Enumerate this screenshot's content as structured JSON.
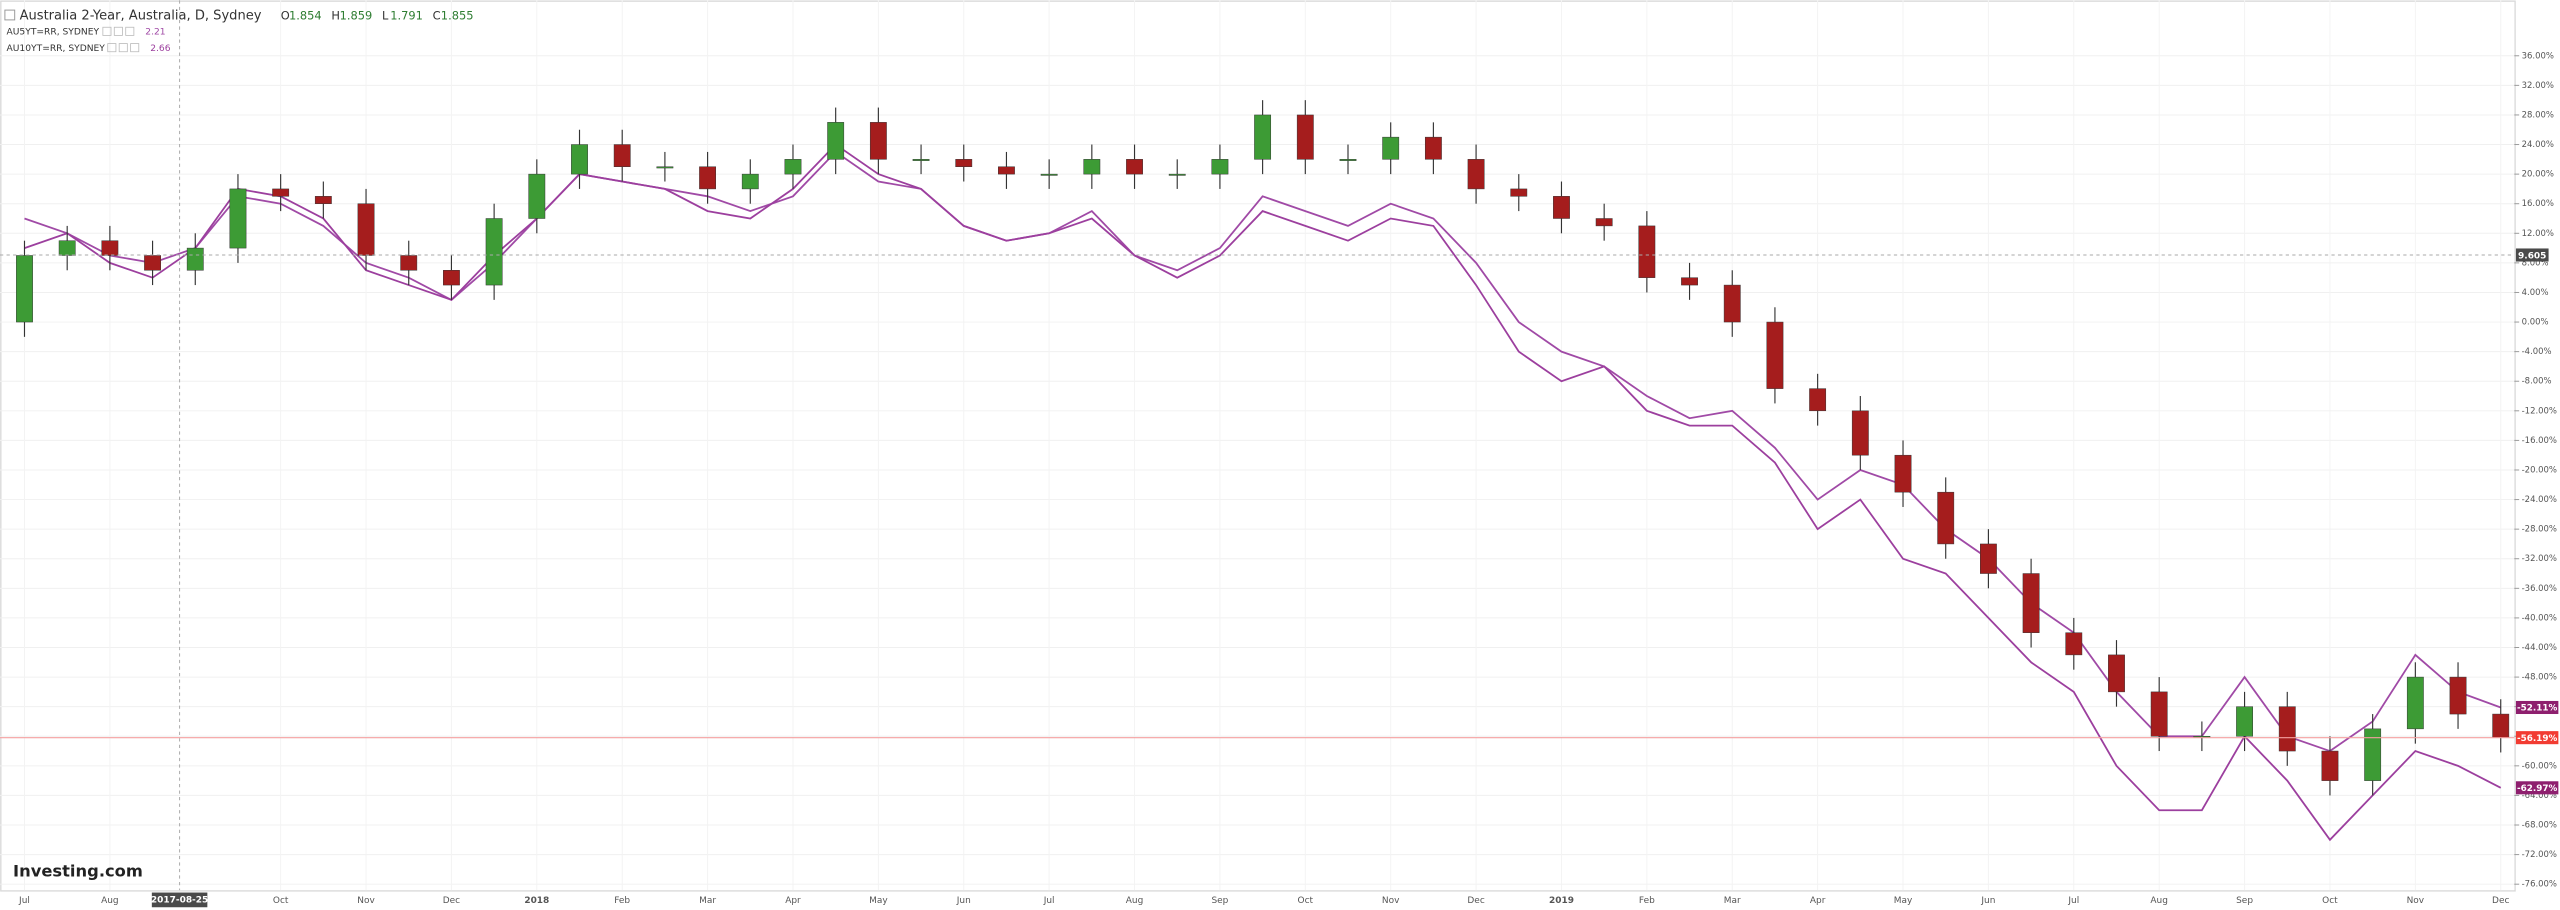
{
  "chart_data": {
    "type": "candlestick",
    "title": "Australia 2-Year, Australia, D, Sydney",
    "readout": [
      {
        "label": "O",
        "value": 1.854
      },
      {
        "label": "H",
        "value": 1.859
      },
      {
        "label": "L",
        "value": 1.791
      },
      {
        "label": "C",
        "value": 1.855
      }
    ],
    "up_color": "#3d9b35",
    "down_color": "#a51d1d",
    "categories": [
      "Jul",
      null,
      "Aug",
      null,
      null,
      null,
      "Oct",
      null,
      "Nov",
      null,
      "Dec",
      null,
      "2018",
      null,
      "Feb",
      null,
      "Mar",
      null,
      "Apr",
      null,
      "May",
      null,
      "Jun",
      null,
      "Jul",
      null,
      "Aug",
      null,
      "Sep",
      null,
      "Oct",
      null,
      "Nov",
      null,
      "Dec",
      null,
      "2019",
      null,
      "Feb",
      null,
      "Mar",
      null,
      "Apr",
      null,
      "May",
      null,
      "Jun",
      null,
      "Jul",
      null,
      "Aug",
      null,
      "Sep",
      null,
      "Oct",
      null,
      "Nov",
      null,
      "Dec"
    ],
    "open": [
      0,
      9,
      11,
      9,
      7,
      10,
      18,
      17,
      16,
      9,
      7,
      5,
      14,
      20,
      24,
      21,
      21,
      18,
      20,
      22,
      27,
      22,
      22,
      21,
      20,
      20,
      22,
      20,
      20,
      22,
      28,
      22,
      22,
      25,
      22,
      18,
      17,
      14,
      13,
      6,
      5,
      0,
      -9,
      -12,
      -18,
      -23,
      -30,
      -34,
      -42,
      -45,
      -50,
      -56,
      -56,
      -52,
      -58,
      -62,
      -55,
      -48,
      -53
    ],
    "high": [
      11,
      13,
      13,
      11,
      12,
      20,
      20,
      19,
      18,
      11,
      9,
      16,
      22,
      26,
      26,
      23,
      23,
      22,
      24,
      29,
      29,
      24,
      24,
      23,
      22,
      24,
      24,
      22,
      24,
      30,
      30,
      24,
      27,
      27,
      24,
      20,
      19,
      16,
      15,
      8,
      7,
      2,
      -7,
      -10,
      -16,
      -21,
      -28,
      -32,
      -40,
      -43,
      -48,
      -54,
      -50,
      -50,
      -56,
      -53,
      -46,
      -46,
      -51
    ],
    "low": [
      -2,
      7,
      7,
      5,
      5,
      8,
      15,
      14,
      7,
      5,
      3,
      3,
      12,
      18,
      19,
      19,
      16,
      16,
      18,
      20,
      20,
      20,
      19,
      18,
      18,
      18,
      18,
      18,
      18,
      20,
      20,
      20,
      20,
      20,
      16,
      15,
      12,
      11,
      4,
      3,
      -2,
      -11,
      -14,
      -20,
      -25,
      -32,
      -36,
      -44,
      -47,
      -52,
      -58,
      -58,
      -58,
      -60,
      -64,
      -64,
      -57,
      -55,
      -58.19
    ],
    "close": [
      9,
      11,
      9,
      7,
      10,
      18,
      17,
      16,
      9,
      7,
      5,
      14,
      20,
      24,
      21,
      21,
      18,
      20,
      22,
      27,
      22,
      22,
      21,
      20,
      20,
      22,
      20,
      20,
      22,
      28,
      22,
      22,
      25,
      22,
      18,
      17,
      14,
      13,
      6,
      5,
      0,
      -9,
      -12,
      -18,
      -23,
      -30,
      -34,
      -42,
      -45,
      -50,
      -56,
      -56,
      -52,
      -58,
      -62,
      -55,
      -48,
      -53,
      -56.19
    ],
    "series": [
      {
        "name": "AU5YT=RR, SYDNEY",
        "last": 2.21,
        "color": "#a04aa6",
        "values": [
          14,
          12,
          9,
          8,
          10,
          17,
          16,
          13,
          8,
          6,
          3,
          8,
          14,
          20,
          19,
          18,
          17,
          15,
          17,
          23,
          19,
          18,
          13,
          11,
          12,
          15,
          9,
          7,
          10,
          17,
          15,
          13,
          16,
          14,
          8,
          0,
          -4,
          -6,
          -10,
          -13,
          -12,
          -17,
          -24,
          -20,
          -22,
          -28,
          -32,
          -38,
          -42,
          -50,
          -56,
          -56,
          -48,
          -56,
          -58,
          -54,
          -45,
          -50,
          -52.11
        ]
      },
      {
        "name": "AU10YT=RR, SYDNEY",
        "last": 2.66,
        "color": "#9c3f9e",
        "values": [
          10,
          12,
          8,
          6,
          10,
          18,
          17,
          14,
          7,
          5,
          3,
          9,
          14,
          20,
          19,
          18,
          15,
          14,
          18,
          24,
          20,
          18,
          13,
          11,
          12,
          14,
          9,
          6,
          9,
          15,
          13,
          11,
          14,
          13,
          5,
          -4,
          -8,
          -6,
          -12,
          -14,
          -14,
          -19,
          -28,
          -24,
          -32,
          -34,
          -40,
          -46,
          -50,
          -60,
          -66,
          -66,
          -56,
          -62,
          -70,
          -64,
          -58,
          -60,
          -62.97
        ]
      }
    ],
    "ylim": [
      -76.8,
      43.5
    ],
    "yticks": [
      {
        "value": 36,
        "label": "36.00%"
      },
      {
        "value": 32,
        "label": "32.00%"
      },
      {
        "value": 28,
        "label": "28.00%"
      },
      {
        "value": 24,
        "label": "24.00%"
      },
      {
        "value": 20,
        "label": "20.00%"
      },
      {
        "value": 16,
        "label": "16.00%"
      },
      {
        "value": 12,
        "label": "12.00%"
      },
      {
        "value": 8,
        "label": "8.00%"
      },
      {
        "value": 4,
        "label": "4.00%"
      },
      {
        "value": 0,
        "label": "0.00%"
      },
      {
        "value": -4,
        "label": "-4.00%"
      },
      {
        "value": -8,
        "label": "-8.00%"
      },
      {
        "value": -12,
        "label": "-12.00%"
      },
      {
        "value": -16,
        "label": "-16.00%"
      },
      {
        "value": -20,
        "label": "-20.00%"
      },
      {
        "value": -24,
        "label": "-24.00%"
      },
      {
        "value": -28,
        "label": "-28.00%"
      },
      {
        "value": -32,
        "label": "-32.00%"
      },
      {
        "value": -36,
        "label": "-36.00%"
      },
      {
        "value": -40,
        "label": "-40.00%"
      },
      {
        "value": -44,
        "label": "-44.00%"
      },
      {
        "value": -48,
        "label": "-48.00%"
      },
      {
        "value": -52,
        "label": "-52.00%"
      },
      {
        "value": -56,
        "label": "-56.00%"
      },
      {
        "value": -60,
        "label": "-60.00%"
      },
      {
        "value": -64,
        "label": "-64.00%"
      },
      {
        "value": -68,
        "label": "-68.00%"
      },
      {
        "value": -72,
        "label": "-72.00%"
      },
      {
        "value": -76,
        "label": "-76.00%"
      }
    ],
    "price_labels": [
      {
        "value": -52.11,
        "label": "-52.11%",
        "color": "#8e1f6e"
      },
      {
        "value": -56.19,
        "label": "-56.19%",
        "color": "#f23c32"
      },
      {
        "value": -62.97,
        "label": "-62.97%",
        "color": "#8e1f6e"
      }
    ],
    "crosshair_date": "2017-08-25",
    "crosshair_price": 9.605,
    "watermark": "Investing.com"
  }
}
